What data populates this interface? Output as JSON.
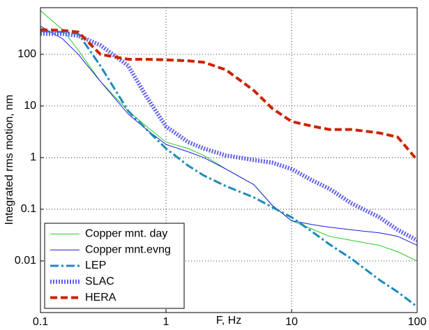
{
  "chart_data": {
    "type": "line",
    "xlabel": "F, Hz",
    "ylabel": "Integrated rms motion, nm",
    "xscale": "log",
    "yscale": "log",
    "grid": true,
    "legend": "lower left",
    "xlim": [
      0.1,
      100
    ],
    "ylim": [
      0.001,
      800
    ],
    "xticks": [
      0.1,
      1,
      10,
      100
    ],
    "yticks": [
      0.01,
      0.1,
      1,
      10,
      100
    ],
    "x": [
      0.1,
      0.15,
      0.2,
      0.3,
      0.5,
      0.7,
      1,
      1.5,
      2,
      3,
      5,
      7,
      10,
      15,
      20,
      30,
      50,
      70,
      100
    ],
    "series": [
      {
        "name": "Copper mnt. day",
        "color": "#22cc22",
        "style": "solid",
        "width": 1,
        "values": [
          700,
          300,
          120,
          30,
          8,
          4,
          2,
          1.5,
          1.1,
          0.6,
          0.3,
          0.12,
          0.06,
          0.04,
          0.03,
          0.025,
          0.02,
          0.015,
          0.01
        ]
      },
      {
        "name": "Copper mnt.evng",
        "color": "#1a1add",
        "style": "solid",
        "width": 1,
        "values": [
          350,
          200,
          100,
          30,
          7,
          3.5,
          1.8,
          1.3,
          1.0,
          0.6,
          0.3,
          0.12,
          0.06,
          0.05,
          0.045,
          0.04,
          0.035,
          0.03,
          0.02
        ]
      },
      {
        "name": "LEP",
        "color": "#1a8ab8",
        "style": "dashdot",
        "width": 3,
        "values": [
          280,
          270,
          250,
          60,
          8,
          3.5,
          1.5,
          0.7,
          0.45,
          0.28,
          0.17,
          0.11,
          0.07,
          0.035,
          0.021,
          0.011,
          0.0043,
          0.0025,
          0.0013
        ]
      },
      {
        "name": "SLAC",
        "color": "#6060ee",
        "style": "dotted",
        "width": 6,
        "values": [
          250,
          250,
          230,
          150,
          60,
          15,
          4,
          2,
          1.5,
          1.1,
          0.9,
          0.8,
          0.6,
          0.35,
          0.25,
          0.13,
          0.07,
          0.04,
          0.025
        ]
      },
      {
        "name": "HERA",
        "color": "#cc2200",
        "style": "dashed",
        "width": 4,
        "values": [
          300,
          290,
          270,
          100,
          80,
          80,
          78,
          75,
          70,
          50,
          20,
          9,
          5,
          4,
          3.5,
          3.5,
          3,
          2.5,
          0.9
        ]
      }
    ]
  }
}
